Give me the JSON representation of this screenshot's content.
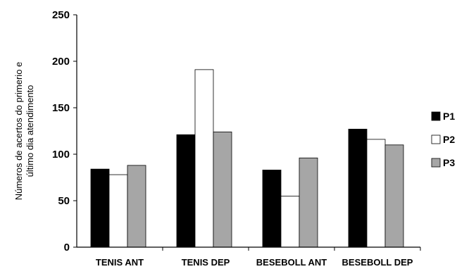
{
  "chart_data": {
    "type": "bar",
    "categories": [
      "TENIS ANT",
      "TENIS DEP",
      "BESEBOLL ANT",
      "BESEBOLL DEP"
    ],
    "series": [
      {
        "name": "P1",
        "values": [
          84,
          121,
          83,
          127
        ],
        "color": "#000000"
      },
      {
        "name": "P2",
        "values": [
          78,
          191,
          55,
          116
        ],
        "color": "#ffffff"
      },
      {
        "name": "P3",
        "values": [
          88,
          124,
          96,
          110
        ],
        "color": "#a6a6a6"
      }
    ],
    "ylabel": [
      "Números de acertos do primerio e",
      "último dia atendimento"
    ],
    "ylim": [
      0,
      250
    ],
    "yticks": [
      0,
      50,
      100,
      150,
      200,
      250
    ],
    "grid": false,
    "legend_position": "right"
  }
}
